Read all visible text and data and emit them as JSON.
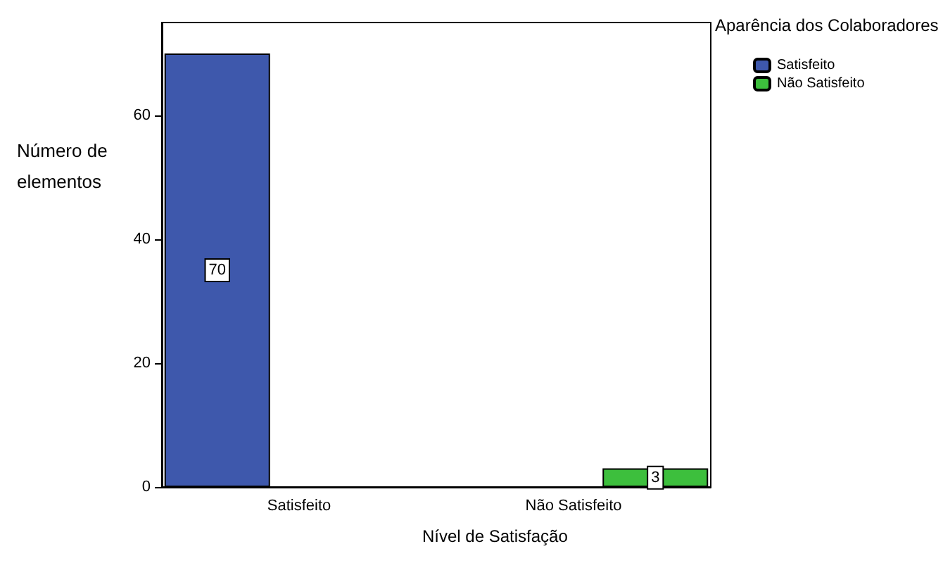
{
  "chart_data": {
    "type": "bar",
    "xlabel": "Nível de Satisfação",
    "ylabel": "Número de elementos",
    "legend_title": "Aparência dos Colaboradores",
    "categories": [
      "Satisfeito",
      "Não Satisfeito"
    ],
    "series": [
      {
        "name": "Satisfeito",
        "color": "#3e58ac",
        "values": [
          70,
          null
        ]
      },
      {
        "name": "Não Satisfeito",
        "color": "#3dbf3d",
        "values": [
          null,
          3
        ]
      }
    ],
    "ylim": [
      0,
      75
    ],
    "yticks": [
      0,
      20,
      40,
      60
    ],
    "grid": false,
    "legend": "top right",
    "data_labels": true
  }
}
